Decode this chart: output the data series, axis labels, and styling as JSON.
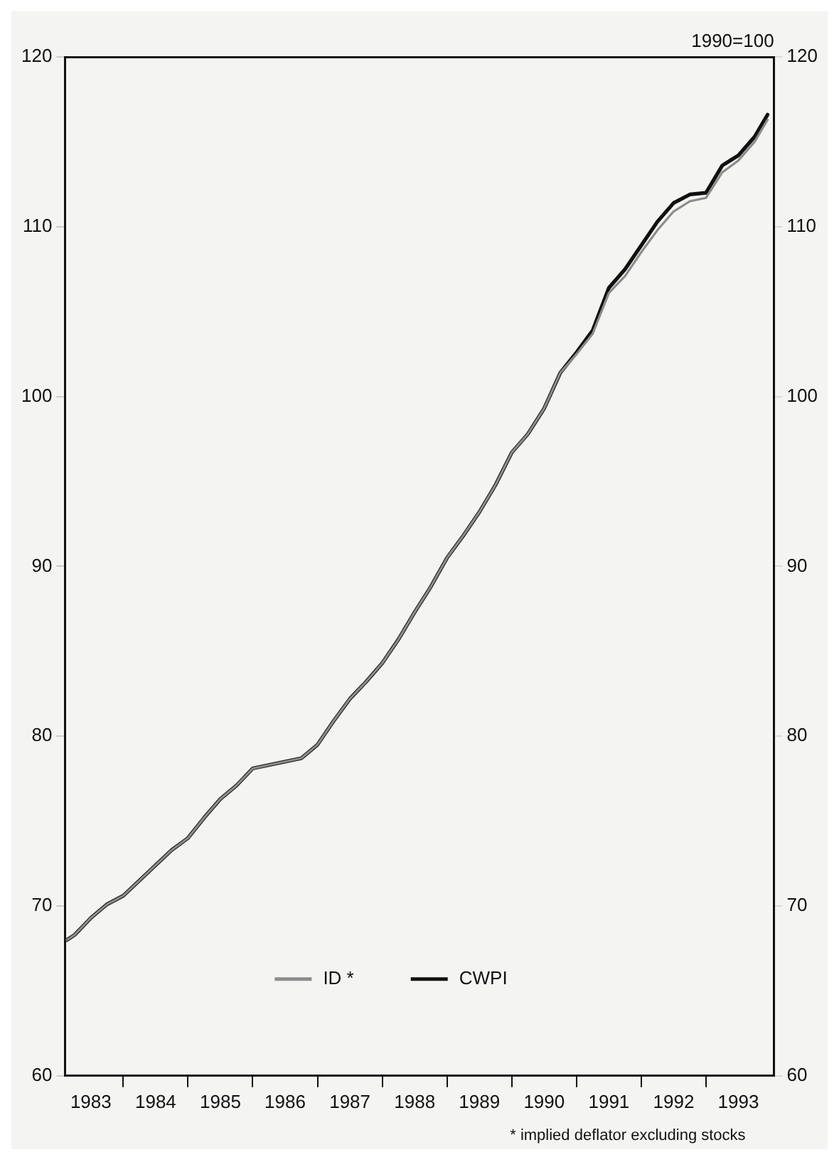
{
  "chart_data": {
    "type": "line",
    "xlim": [
      1983.1,
      1994.05
    ],
    "xticks": [
      {
        "value": 1983.5,
        "label": "1983"
      },
      {
        "value": 1984,
        "label": null
      },
      {
        "value": 1984.5,
        "label": "1984"
      },
      {
        "value": 1985,
        "label": null
      },
      {
        "value": 1985.5,
        "label": "1985"
      },
      {
        "value": 1986,
        "label": null
      },
      {
        "value": 1986.5,
        "label": "1986"
      },
      {
        "value": 1987,
        "label": null
      },
      {
        "value": 1987.5,
        "label": "1987"
      },
      {
        "value": 1988,
        "label": null
      },
      {
        "value": 1988.5,
        "label": "1988"
      },
      {
        "value": 1989,
        "label": null
      },
      {
        "value": 1989.5,
        "label": "1989"
      },
      {
        "value": 1990,
        "label": null
      },
      {
        "value": 1990.5,
        "label": "1990"
      },
      {
        "value": 1991,
        "label": null
      },
      {
        "value": 1991.5,
        "label": "1991"
      },
      {
        "value": 1992,
        "label": null
      },
      {
        "value": 1992.5,
        "label": "1992"
      },
      {
        "value": 1993,
        "label": null
      },
      {
        "value": 1993.5,
        "label": "1993"
      }
    ],
    "x": [
      1983.13,
      1983.25,
      1983.5,
      1983.75,
      1984,
      1984.25,
      1984.5,
      1984.75,
      1985,
      1985.25,
      1985.5,
      1985.75,
      1986,
      1986.25,
      1986.5,
      1986.75,
      1987,
      1987.25,
      1987.5,
      1987.75,
      1988,
      1988.25,
      1988.5,
      1988.75,
      1989,
      1989.25,
      1989.5,
      1989.75,
      1990,
      1990.25,
      1990.5,
      1990.75,
      1991,
      1991.25,
      1991.5,
      1991.75,
      1992,
      1992.25,
      1992.5,
      1992.75,
      1993,
      1993.25,
      1993.5,
      1993.75,
      1993.95
    ],
    "ylim": [
      60,
      120
    ],
    "yticks": [
      60,
      70,
      80,
      90,
      100,
      110,
      120
    ],
    "y2lim": [
      60,
      120
    ],
    "y2ticks": [
      60,
      70,
      80,
      90,
      100,
      110,
      120
    ],
    "grid": false,
    "legend": "bottom",
    "marker": "none",
    "line_style": "solid",
    "annotations": [
      "1990=100",
      "* implied deflator excluding stocks"
    ],
    "series": [
      {
        "name": "ID *",
        "color": "#8c8c8c",
        "values": [
          68.0,
          68.3,
          69.3,
          70.1,
          70.6,
          71.5,
          72.4,
          73.3,
          74.0,
          75.2,
          76.3,
          77.1,
          78.1,
          78.3,
          78.5,
          78.7,
          79.5,
          80.9,
          82.2,
          83.2,
          84.3,
          85.7,
          87.3,
          88.8,
          90.5,
          91.8,
          93.2,
          94.8,
          96.7,
          97.8,
          99.3,
          101.4,
          102.5,
          103.7,
          106.1,
          107.1,
          108.5,
          109.8,
          110.9,
          111.5,
          111.7,
          113.2,
          113.9,
          115.0,
          116.3
        ]
      },
      {
        "name": "CWPI",
        "color": "#111111",
        "values": [
          68.0,
          68.3,
          69.3,
          70.1,
          70.6,
          71.5,
          72.4,
          73.3,
          74.0,
          75.2,
          76.3,
          77.1,
          78.1,
          78.3,
          78.5,
          78.7,
          79.5,
          80.9,
          82.2,
          83.2,
          84.3,
          85.7,
          87.3,
          88.8,
          90.5,
          91.8,
          93.2,
          94.8,
          96.7,
          97.8,
          99.3,
          101.4,
          102.6,
          103.9,
          106.4,
          107.5,
          108.9,
          110.3,
          111.4,
          111.9,
          112.0,
          113.6,
          114.2,
          115.3,
          116.6
        ]
      }
    ]
  }
}
